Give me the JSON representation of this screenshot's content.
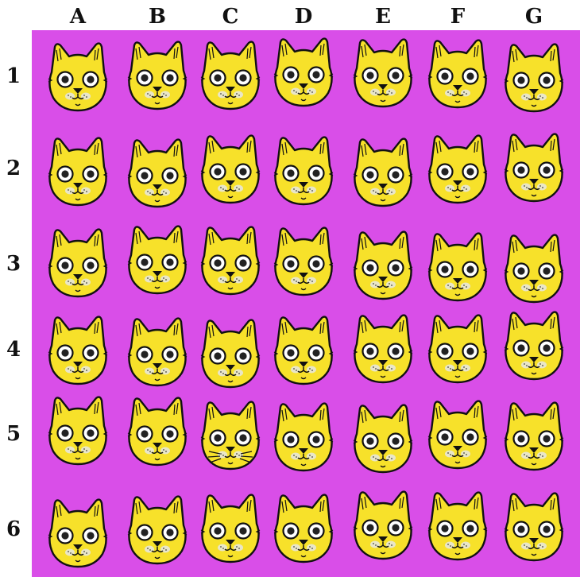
{
  "grid": {
    "columns": [
      "A",
      "B",
      "C",
      "D",
      "E",
      "F",
      "G"
    ],
    "rows": [
      "1",
      "2",
      "3",
      "4",
      "5",
      "6"
    ]
  },
  "colors": {
    "background": "#d94ee8",
    "cat_fill": "#f7e12a",
    "outline": "#111111",
    "cheek": "#e9e6c8"
  },
  "cats": [
    {
      "cell": "A1",
      "variant": "plain"
    },
    {
      "cell": "B1",
      "variant": "plain"
    },
    {
      "cell": "C1",
      "variant": "plain"
    },
    {
      "cell": "D1",
      "variant": "plain"
    },
    {
      "cell": "E1",
      "variant": "plain"
    },
    {
      "cell": "F1",
      "variant": "plain"
    },
    {
      "cell": "G1",
      "variant": "plain"
    },
    {
      "cell": "A2",
      "variant": "plain"
    },
    {
      "cell": "B2",
      "variant": "plain"
    },
    {
      "cell": "C2",
      "variant": "plain"
    },
    {
      "cell": "D2",
      "variant": "plain"
    },
    {
      "cell": "E2",
      "variant": "plain"
    },
    {
      "cell": "F2",
      "variant": "plain"
    },
    {
      "cell": "G2",
      "variant": "plain"
    },
    {
      "cell": "A3",
      "variant": "plain"
    },
    {
      "cell": "B3",
      "variant": "plain"
    },
    {
      "cell": "C3",
      "variant": "plain"
    },
    {
      "cell": "D3",
      "variant": "plain"
    },
    {
      "cell": "E3",
      "variant": "plain"
    },
    {
      "cell": "F3",
      "variant": "plain"
    },
    {
      "cell": "G3",
      "variant": "plain"
    },
    {
      "cell": "A4",
      "variant": "plain"
    },
    {
      "cell": "B4",
      "variant": "plain"
    },
    {
      "cell": "C4",
      "variant": "plain"
    },
    {
      "cell": "D4",
      "variant": "plain"
    },
    {
      "cell": "E4",
      "variant": "plain"
    },
    {
      "cell": "F4",
      "variant": "plain"
    },
    {
      "cell": "G4",
      "variant": "plain"
    },
    {
      "cell": "A5",
      "variant": "plain"
    },
    {
      "cell": "B5",
      "variant": "plain"
    },
    {
      "cell": "C5",
      "variant": "whiskers"
    },
    {
      "cell": "D5",
      "variant": "plain"
    },
    {
      "cell": "E5",
      "variant": "plain"
    },
    {
      "cell": "F5",
      "variant": "plain"
    },
    {
      "cell": "G5",
      "variant": "plain"
    },
    {
      "cell": "A6",
      "variant": "plain"
    },
    {
      "cell": "B6",
      "variant": "plain"
    },
    {
      "cell": "C6",
      "variant": "plain"
    },
    {
      "cell": "D6",
      "variant": "plain"
    },
    {
      "cell": "E6",
      "variant": "plain"
    },
    {
      "cell": "F6",
      "variant": "plain"
    },
    {
      "cell": "G6",
      "variant": "plain"
    }
  ]
}
